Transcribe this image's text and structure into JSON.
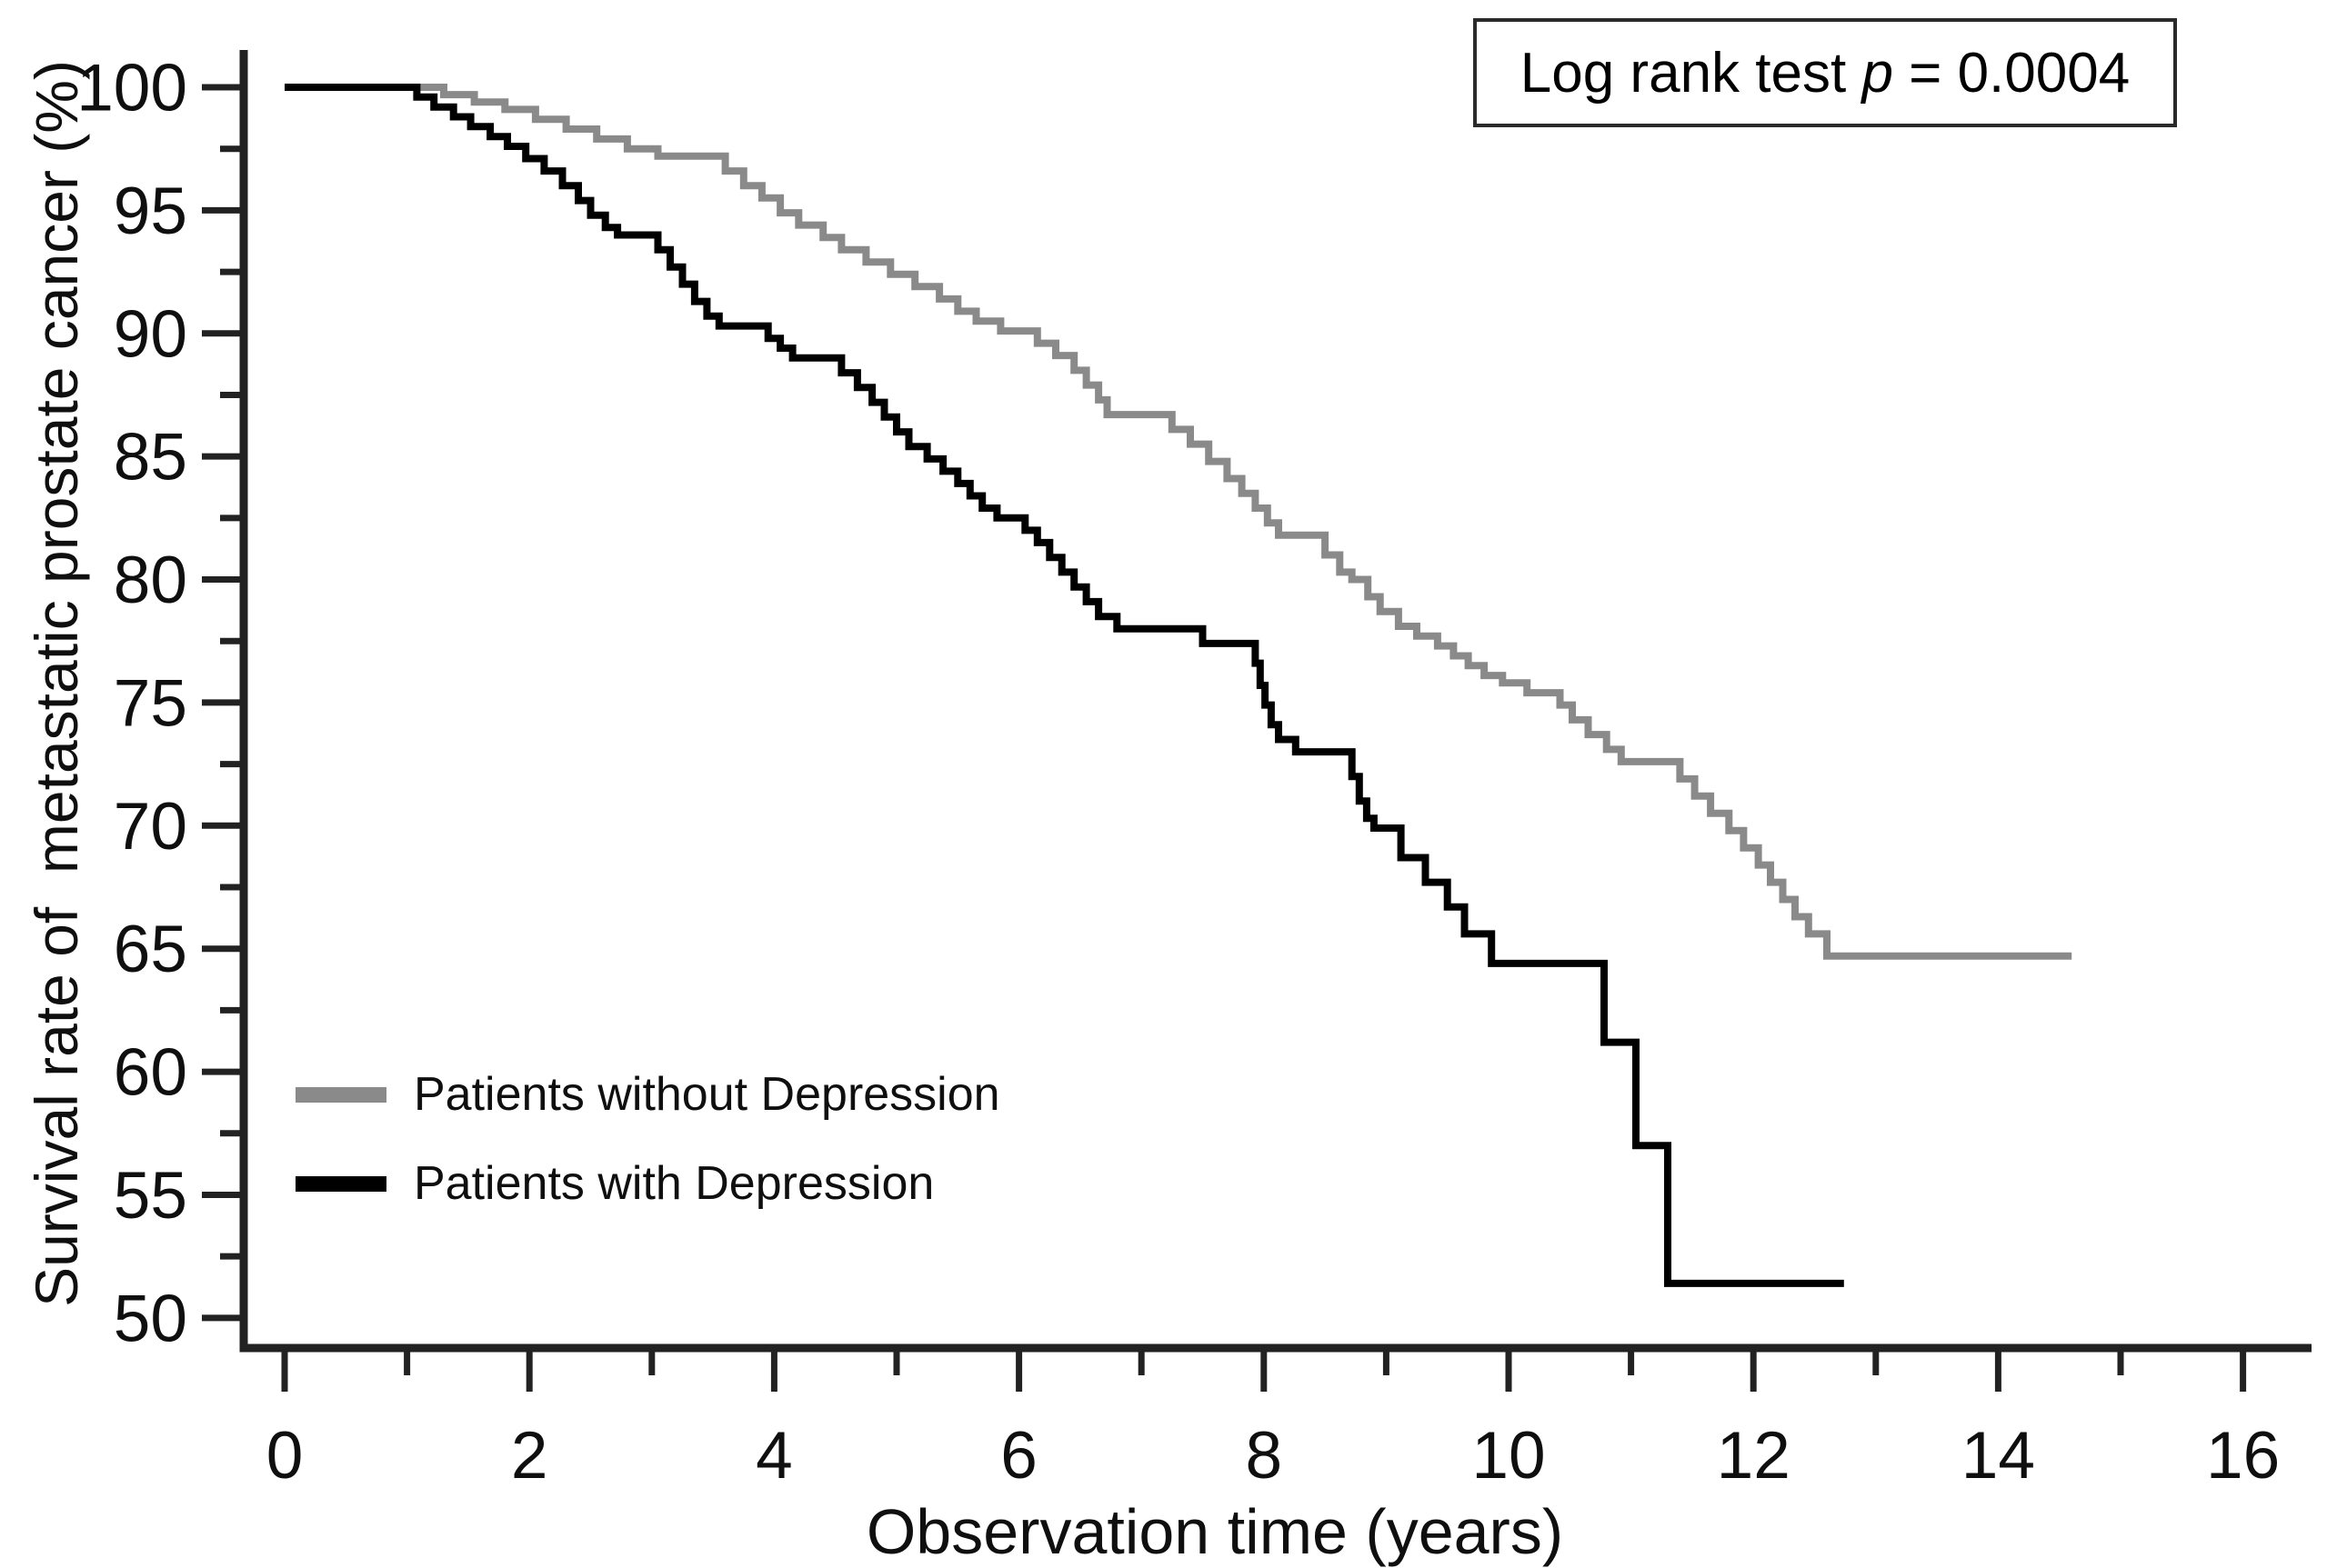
{
  "figure": {
    "y_axis_title": "Survival rate of  metastatic prostate cancer (%)",
    "x_axis_title": "Observation time (years)"
  },
  "legend": {
    "items": [
      {
        "label": "Patients without Depression",
        "color": "#8a8a8a"
      },
      {
        "label": "Patients with Depression",
        "color": "#000000"
      }
    ]
  },
  "annotation": {
    "prefix": "Log rank test ",
    "p_symbol": "p",
    "rest": " = 0.0004"
  },
  "colors": {
    "axis": "#222222",
    "text": "#0f0f0f",
    "series_without_depression": "#8a8a8a",
    "series_with_depression": "#000000"
  },
  "chart_data": {
    "type": "line",
    "subtype": "kaplan-meier-step",
    "title": "",
    "xlabel": "Observation time (years)",
    "ylabel": "Survival rate of  metastatic prostate cancer (%)",
    "xlim": [
      0,
      16.6
    ],
    "ylim": [
      48.8,
      100
    ],
    "grid": false,
    "legend_position": "inside-lower-left",
    "annotation": "Log rank test p = 0.0004",
    "x_ticks": [
      0,
      2,
      4,
      6,
      8,
      10,
      12,
      14,
      16
    ],
    "x_minor_ticks": [
      1,
      3,
      5,
      7,
      9,
      11,
      13,
      15
    ],
    "y_ticks": [
      100,
      95,
      90,
      85,
      80,
      75,
      70,
      65,
      60,
      55,
      50
    ],
    "y_minor_ticks": [
      97.5,
      92.5,
      87.5,
      82.5,
      77.5,
      72.5,
      67.5,
      62.5,
      57.5,
      52.5
    ],
    "series": [
      {
        "name": "Patients without Depression",
        "color": "#8a8a8a",
        "points": [
          [
            0,
            100
          ],
          [
            1.3,
            99.7
          ],
          [
            1.55,
            99.4
          ],
          [
            1.8,
            99.1
          ],
          [
            2.05,
            98.7
          ],
          [
            2.3,
            98.3
          ],
          [
            2.55,
            97.9
          ],
          [
            2.8,
            97.5
          ],
          [
            3.05,
            97.2
          ],
          [
            3.6,
            96.6
          ],
          [
            3.75,
            96.0
          ],
          [
            3.9,
            95.5
          ],
          [
            4.05,
            94.9
          ],
          [
            4.2,
            94.4
          ],
          [
            4.4,
            93.9
          ],
          [
            4.55,
            93.4
          ],
          [
            4.75,
            92.9
          ],
          [
            4.95,
            92.4
          ],
          [
            5.15,
            91.9
          ],
          [
            5.35,
            91.4
          ],
          [
            5.5,
            90.9
          ],
          [
            5.65,
            90.5
          ],
          [
            5.85,
            90.1
          ],
          [
            6.15,
            89.6
          ],
          [
            6.3,
            89.1
          ],
          [
            6.45,
            88.5
          ],
          [
            6.55,
            87.9
          ],
          [
            6.65,
            87.3
          ],
          [
            6.72,
            86.7
          ],
          [
            7.25,
            86.1
          ],
          [
            7.4,
            85.5
          ],
          [
            7.55,
            84.8
          ],
          [
            7.7,
            84.1
          ],
          [
            7.82,
            83.5
          ],
          [
            7.93,
            82.9
          ],
          [
            8.03,
            82.3
          ],
          [
            8.12,
            81.8
          ],
          [
            8.5,
            81.0
          ],
          [
            8.62,
            80.3
          ],
          [
            8.72,
            80.0
          ],
          [
            8.85,
            79.3
          ],
          [
            8.95,
            78.7
          ],
          [
            9.1,
            78.1
          ],
          [
            9.25,
            77.7
          ],
          [
            9.42,
            77.3
          ],
          [
            9.55,
            76.9
          ],
          [
            9.67,
            76.5
          ],
          [
            9.8,
            76.1
          ],
          [
            9.95,
            75.8
          ],
          [
            10.15,
            75.4
          ],
          [
            10.42,
            74.9
          ],
          [
            10.52,
            74.3
          ],
          [
            10.65,
            73.7
          ],
          [
            10.8,
            73.1
          ],
          [
            10.92,
            72.6
          ],
          [
            11.4,
            71.9
          ],
          [
            11.52,
            71.2
          ],
          [
            11.65,
            70.5
          ],
          [
            11.8,
            69.8
          ],
          [
            11.92,
            69.1
          ],
          [
            12.04,
            68.4
          ],
          [
            12.14,
            67.7
          ],
          [
            12.24,
            67.0
          ],
          [
            12.34,
            66.3
          ],
          [
            12.45,
            65.6
          ],
          [
            12.6,
            64.7
          ],
          [
            14.6,
            64.7
          ]
        ]
      },
      {
        "name": "Patients with Depression",
        "color": "#000000",
        "points": [
          [
            0,
            100
          ],
          [
            1.08,
            99.6
          ],
          [
            1.22,
            99.2
          ],
          [
            1.38,
            98.8
          ],
          [
            1.52,
            98.4
          ],
          [
            1.68,
            98.0
          ],
          [
            1.82,
            97.6
          ],
          [
            1.97,
            97.1
          ],
          [
            2.12,
            96.6
          ],
          [
            2.27,
            96.0
          ],
          [
            2.4,
            95.4
          ],
          [
            2.5,
            94.8
          ],
          [
            2.62,
            94.3
          ],
          [
            2.72,
            94.0
          ],
          [
            3.05,
            93.4
          ],
          [
            3.15,
            92.7
          ],
          [
            3.25,
            92.0
          ],
          [
            3.35,
            91.3
          ],
          [
            3.45,
            90.7
          ],
          [
            3.55,
            90.3
          ],
          [
            3.95,
            89.8
          ],
          [
            4.05,
            89.4
          ],
          [
            4.15,
            89.0
          ],
          [
            4.55,
            88.4
          ],
          [
            4.68,
            87.8
          ],
          [
            4.8,
            87.2
          ],
          [
            4.9,
            86.6
          ],
          [
            5.0,
            86.0
          ],
          [
            5.1,
            85.4
          ],
          [
            5.25,
            84.9
          ],
          [
            5.38,
            84.4
          ],
          [
            5.5,
            83.9
          ],
          [
            5.6,
            83.4
          ],
          [
            5.7,
            82.9
          ],
          [
            5.82,
            82.5
          ],
          [
            6.05,
            82.0
          ],
          [
            6.15,
            81.5
          ],
          [
            6.25,
            80.9
          ],
          [
            6.35,
            80.3
          ],
          [
            6.45,
            79.7
          ],
          [
            6.55,
            79.1
          ],
          [
            6.65,
            78.5
          ],
          [
            6.8,
            78.0
          ],
          [
            7.5,
            77.4
          ],
          [
            7.93,
            76.6
          ],
          [
            7.97,
            75.7
          ],
          [
            8.01,
            74.9
          ],
          [
            8.06,
            74.1
          ],
          [
            8.12,
            73.5
          ],
          [
            8.26,
            73.0
          ],
          [
            8.72,
            72.0
          ],
          [
            8.78,
            71.0
          ],
          [
            8.84,
            70.3
          ],
          [
            8.9,
            69.9
          ],
          [
            9.12,
            68.7
          ],
          [
            9.32,
            67.7
          ],
          [
            9.5,
            66.7
          ],
          [
            9.64,
            65.6
          ],
          [
            9.86,
            64.4
          ],
          [
            10.78,
            61.2
          ],
          [
            11.04,
            57.0
          ],
          [
            11.3,
            51.4
          ],
          [
            12.74,
            51.4
          ]
        ]
      }
    ]
  }
}
